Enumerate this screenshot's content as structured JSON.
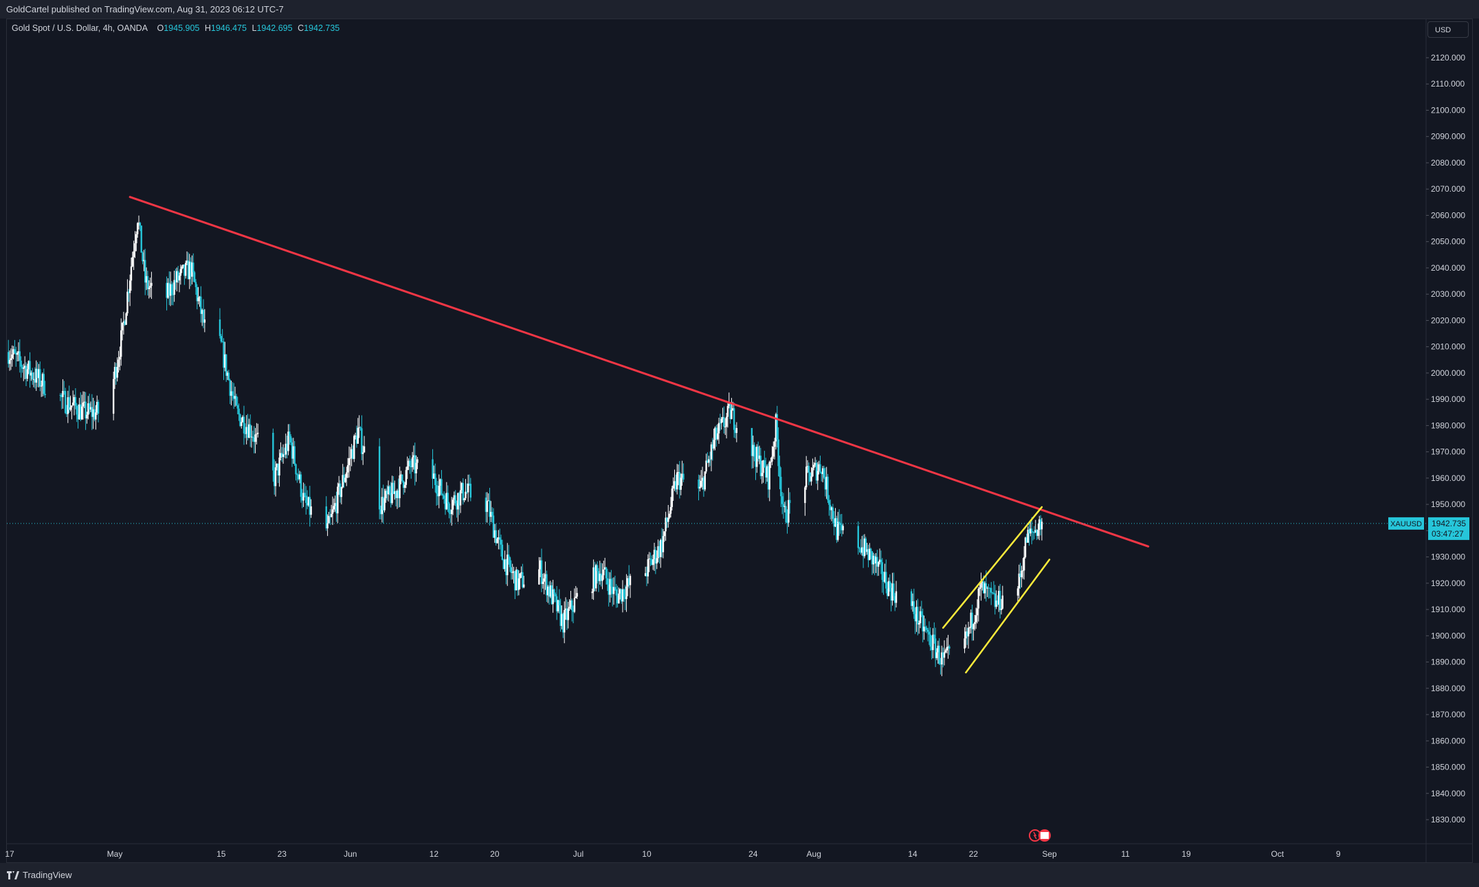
{
  "header": {
    "published_text": "GoldCartel published on TradingView.com, Aug 31, 2023 06:12 UTC-7"
  },
  "legend": {
    "symbol_text": "Gold Spot / U.S. Dollar, 4h, OANDA",
    "open_label": "O",
    "open_value": "1945.905",
    "high_label": "H",
    "high_value": "1946.475",
    "low_label": "L",
    "low_value": "1942.695",
    "close_label": "C",
    "close_value": "1942.735"
  },
  "currency_button": "USD",
  "footer": {
    "brand": "TradingView"
  },
  "colors": {
    "background": "#131722",
    "candle_up": "#ffffff",
    "candle_down": "#26c6da",
    "trendline": "#f23645",
    "channel": "#ffeb3b",
    "price_tag": "#26c6da"
  },
  "chart_data": {
    "type": "candlestick",
    "symbol": "XAUUSD",
    "timeframe": "4h",
    "last_price_label": "1942.735",
    "countdown_label": "03:47:27",
    "y_ticks": [
      "2120.000",
      "2110.000",
      "2100.000",
      "2090.000",
      "2080.000",
      "2070.000",
      "2060.000",
      "2050.000",
      "2040.000",
      "2030.000",
      "2020.000",
      "2010.000",
      "2000.000",
      "1990.000",
      "1980.000",
      "1970.000",
      "1960.000",
      "1950.000",
      "1940.000",
      "1930.000",
      "1920.000",
      "1910.000",
      "1900.000",
      "1890.000",
      "1880.000",
      "1870.000",
      "1860.000",
      "1850.000",
      "1840.000",
      "1830.000"
    ],
    "y_range": [
      1825,
      2128
    ],
    "x_ticks": [
      {
        "label": "17",
        "date": "2023-04-17"
      },
      {
        "label": "May",
        "date": "2023-05-01"
      },
      {
        "label": "15",
        "date": "2023-05-15"
      },
      {
        "label": "23",
        "date": "2023-05-23"
      },
      {
        "label": "Jun",
        "date": "2023-06-01"
      },
      {
        "label": "12",
        "date": "2023-06-12"
      },
      {
        "label": "20",
        "date": "2023-06-20"
      },
      {
        "label": "Jul",
        "date": "2023-07-01"
      },
      {
        "label": "10",
        "date": "2023-07-10"
      },
      {
        "label": "24",
        "date": "2023-07-24"
      },
      {
        "label": "Aug",
        "date": "2023-08-01"
      },
      {
        "label": "14",
        "date": "2023-08-14"
      },
      {
        "label": "22",
        "date": "2023-08-22"
      },
      {
        "label": "Sep",
        "date": "2023-09-01"
      },
      {
        "label": "11",
        "date": "2023-09-11"
      },
      {
        "label": "19",
        "date": "2023-09-19"
      },
      {
        "label": "Oct",
        "date": "2023-10-01"
      },
      {
        "label": "9",
        "date": "2023-10-09"
      }
    ],
    "close_path": [
      {
        "date": "2023-04-17",
        "close": 2008
      },
      {
        "date": "2023-04-20",
        "close": 2000
      },
      {
        "date": "2023-04-24",
        "close": 1990
      },
      {
        "date": "2023-04-27",
        "close": 1985
      },
      {
        "date": "2023-04-30",
        "close": 1985
      },
      {
        "date": "2023-05-02",
        "close": 2015
      },
      {
        "date": "2023-05-04",
        "close": 2060
      },
      {
        "date": "2023-05-05",
        "close": 2035
      },
      {
        "date": "2023-05-07",
        "close": 2025
      },
      {
        "date": "2023-05-09",
        "close": 2035
      },
      {
        "date": "2023-05-11",
        "close": 2040
      },
      {
        "date": "2023-05-13",
        "close": 2015
      },
      {
        "date": "2023-05-15",
        "close": 2010
      },
      {
        "date": "2023-05-17",
        "close": 1985
      },
      {
        "date": "2023-05-19",
        "close": 1978
      },
      {
        "date": "2023-05-22",
        "close": 1960
      },
      {
        "date": "2023-05-24",
        "close": 1975
      },
      {
        "date": "2023-05-26",
        "close": 1950
      },
      {
        "date": "2023-05-29",
        "close": 1940
      },
      {
        "date": "2023-06-01",
        "close": 1968
      },
      {
        "date": "2023-06-02",
        "close": 1978
      },
      {
        "date": "2023-06-05",
        "close": 1950
      },
      {
        "date": "2023-06-07",
        "close": 1955
      },
      {
        "date": "2023-06-09",
        "close": 1965
      },
      {
        "date": "2023-06-12",
        "close": 1960
      },
      {
        "date": "2023-06-14",
        "close": 1950
      },
      {
        "date": "2023-06-16",
        "close": 1955
      },
      {
        "date": "2023-06-19",
        "close": 1950
      },
      {
        "date": "2023-06-21",
        "close": 1930
      },
      {
        "date": "2023-06-23",
        "close": 1920
      },
      {
        "date": "2023-06-26",
        "close": 1925
      },
      {
        "date": "2023-06-29",
        "close": 1905
      },
      {
        "date": "2023-07-01",
        "close": 1915
      },
      {
        "date": "2023-07-04",
        "close": 1925
      },
      {
        "date": "2023-07-06",
        "close": 1915
      },
      {
        "date": "2023-07-08",
        "close": 1920
      },
      {
        "date": "2023-07-10",
        "close": 1925
      },
      {
        "date": "2023-07-12",
        "close": 1935
      },
      {
        "date": "2023-07-14",
        "close": 1960
      },
      {
        "date": "2023-07-17",
        "close": 1955
      },
      {
        "date": "2023-07-19",
        "close": 1975
      },
      {
        "date": "2023-07-21",
        "close": 1985
      },
      {
        "date": "2023-07-24",
        "close": 1970
      },
      {
        "date": "2023-07-26",
        "close": 1960
      },
      {
        "date": "2023-07-27",
        "close": 1980
      },
      {
        "date": "2023-07-28",
        "close": 1945
      },
      {
        "date": "2023-07-31",
        "close": 1960
      },
      {
        "date": "2023-08-02",
        "close": 1965
      },
      {
        "date": "2023-08-04",
        "close": 1940
      },
      {
        "date": "2023-08-07",
        "close": 1935
      },
      {
        "date": "2023-08-09",
        "close": 1928
      },
      {
        "date": "2023-08-11",
        "close": 1918
      },
      {
        "date": "2023-08-14",
        "close": 1910
      },
      {
        "date": "2023-08-16",
        "close": 1900
      },
      {
        "date": "2023-08-18",
        "close": 1890
      },
      {
        "date": "2023-08-21",
        "close": 1898
      },
      {
        "date": "2023-08-23",
        "close": 1918
      },
      {
        "date": "2023-08-25",
        "close": 1912
      },
      {
        "date": "2023-08-28",
        "close": 1920
      },
      {
        "date": "2023-08-29",
        "close": 1937
      },
      {
        "date": "2023-08-31",
        "close": 1943
      }
    ],
    "drawings": [
      {
        "name": "descending-trendline",
        "color": "#f23645",
        "from": {
          "date": "2023-05-03",
          "price": 2067
        },
        "to": {
          "date": "2023-09-14",
          "price": 1934
        }
      },
      {
        "name": "channel-upper",
        "color": "#ffeb3b",
        "from": {
          "date": "2023-08-18",
          "price": 1903
        },
        "to": {
          "date": "2023-08-31",
          "price": 1949
        }
      },
      {
        "name": "channel-lower",
        "color": "#ffeb3b",
        "from": {
          "date": "2023-08-21",
          "price": 1886
        },
        "to": {
          "date": "2023-09-01",
          "price": 1929
        }
      }
    ]
  }
}
